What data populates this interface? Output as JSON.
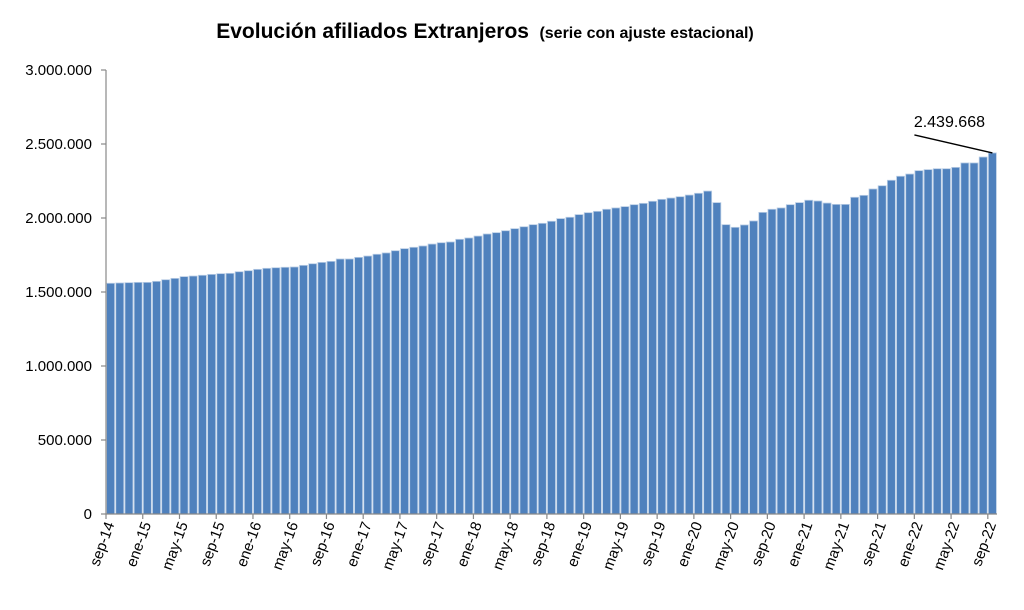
{
  "chart_data": {
    "type": "bar",
    "title": "Evolución afiliados Extranjeros",
    "subtitle": "(serie con ajuste estacional)",
    "xlabel": "",
    "ylabel": "",
    "ylim": [
      0,
      3000000
    ],
    "yticks": [
      0,
      500000,
      1000000,
      1500000,
      2000000,
      2500000,
      3000000
    ],
    "ytick_labels": [
      "0",
      "500.000",
      "1.000.000",
      "1.500.000",
      "2.000.000",
      "2.500.000",
      "3.000.000"
    ],
    "grid": false,
    "legend": "none",
    "bar_color": "#4f81bd",
    "xtick_labels": [
      "sep-14",
      "ene-15",
      "may-15",
      "sep-15",
      "ene-16",
      "may-16",
      "sep-16",
      "ene-17",
      "may-17",
      "sep-17",
      "ene-18",
      "may-18",
      "sep-18",
      "ene-19",
      "may-19",
      "sep-19",
      "ene-20",
      "may-20",
      "sep-20",
      "ene-21",
      "may-21",
      "sep-21",
      "ene-22",
      "may-22",
      "sep-22"
    ],
    "categories": [
      "sep-14",
      "oct-14",
      "nov-14",
      "dic-14",
      "ene-15",
      "feb-15",
      "mar-15",
      "abr-15",
      "may-15",
      "jun-15",
      "jul-15",
      "ago-15",
      "sep-15",
      "oct-15",
      "nov-15",
      "dic-15",
      "ene-16",
      "feb-16",
      "mar-16",
      "abr-16",
      "may-16",
      "jun-16",
      "jul-16",
      "ago-16",
      "sep-16",
      "oct-16",
      "nov-16",
      "dic-16",
      "ene-17",
      "feb-17",
      "mar-17",
      "abr-17",
      "may-17",
      "jun-17",
      "jul-17",
      "ago-17",
      "sep-17",
      "oct-17",
      "nov-17",
      "dic-17",
      "ene-18",
      "feb-18",
      "mar-18",
      "abr-18",
      "may-18",
      "jun-18",
      "jul-18",
      "ago-18",
      "sep-18",
      "oct-18",
      "nov-18",
      "dic-18",
      "ene-19",
      "feb-19",
      "mar-19",
      "abr-19",
      "may-19",
      "jun-19",
      "jul-19",
      "ago-19",
      "sep-19",
      "oct-19",
      "nov-19",
      "dic-19",
      "ene-20",
      "feb-20",
      "mar-20",
      "abr-20",
      "may-20",
      "jun-20",
      "jul-20",
      "ago-20",
      "sep-20",
      "oct-20",
      "nov-20",
      "dic-20",
      "ene-21",
      "feb-21",
      "mar-21",
      "abr-21",
      "may-21",
      "jun-21",
      "jul-21",
      "ago-21",
      "sep-21",
      "oct-21",
      "nov-21",
      "dic-21",
      "ene-22",
      "feb-22",
      "mar-22",
      "abr-22",
      "may-22",
      "jun-22",
      "jul-22",
      "ago-22",
      "sep-22"
    ],
    "values": [
      1559000,
      1561000,
      1563000,
      1565000,
      1565000,
      1572000,
      1583000,
      1592000,
      1604000,
      1608000,
      1613000,
      1619000,
      1624000,
      1626000,
      1637000,
      1644000,
      1653000,
      1660000,
      1664000,
      1667000,
      1669000,
      1680000,
      1691000,
      1700000,
      1707000,
      1723000,
      1723000,
      1734000,
      1743000,
      1755000,
      1764000,
      1779000,
      1793000,
      1802000,
      1811000,
      1824000,
      1833000,
      1838000,
      1856000,
      1865000,
      1878000,
      1892000,
      1901000,
      1914000,
      1928000,
      1941000,
      1955000,
      1964000,
      1978000,
      1996000,
      2005000,
      2023000,
      2036000,
      2045000,
      2059000,
      2068000,
      2077000,
      2090000,
      2099000,
      2113000,
      2126000,
      2135000,
      2144000,
      2155000,
      2167000,
      2182000,
      2104000,
      1955000,
      1937000,
      1953000,
      1980000,
      2038000,
      2059000,
      2068000,
      2090000,
      2104000,
      2120000,
      2115000,
      2101000,
      2092000,
      2092000,
      2140000,
      2153000,
      2196000,
      2218000,
      2255000,
      2282000,
      2297000,
      2320000,
      2327000,
      2333000,
      2333000,
      2342000,
      2372000,
      2372000,
      2412000,
      2439668
    ],
    "annotation": {
      "label": "2.439.668",
      "category": "sep-22"
    }
  }
}
